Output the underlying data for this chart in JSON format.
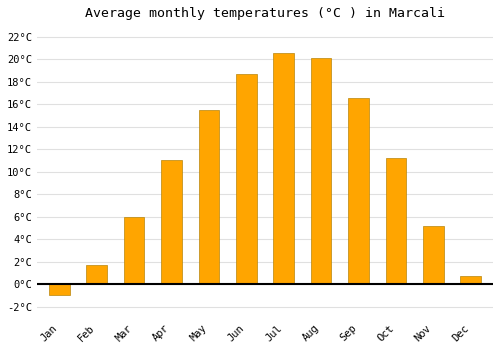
{
  "title": "Average monthly temperatures (°C ) in Marcali",
  "months": [
    "Jan",
    "Feb",
    "Mar",
    "Apr",
    "May",
    "Jun",
    "Jul",
    "Aug",
    "Sep",
    "Oct",
    "Nov",
    "Dec"
  ],
  "values": [
    -1.0,
    1.7,
    6.0,
    11.0,
    15.5,
    18.7,
    20.5,
    20.1,
    16.5,
    11.2,
    5.2,
    0.7
  ],
  "bar_color": "#FFA500",
  "bar_edge_color": "#B8860B",
  "ylim": [
    -3,
    23
  ],
  "yticks": [
    -2,
    0,
    2,
    4,
    6,
    8,
    10,
    12,
    14,
    16,
    18,
    20,
    22
  ],
  "ytick_labels": [
    "-2°C",
    "0°C",
    "2°C",
    "4°C",
    "6°C",
    "8°C",
    "10°C",
    "12°C",
    "14°C",
    "16°C",
    "18°C",
    "20°C",
    "22°C"
  ],
  "background_color": "#ffffff",
  "grid_color": "#e0e0e0",
  "title_fontsize": 9.5,
  "tick_fontsize": 7.5,
  "bar_width": 0.55,
  "figsize": [
    5.0,
    3.5
  ],
  "dpi": 100
}
